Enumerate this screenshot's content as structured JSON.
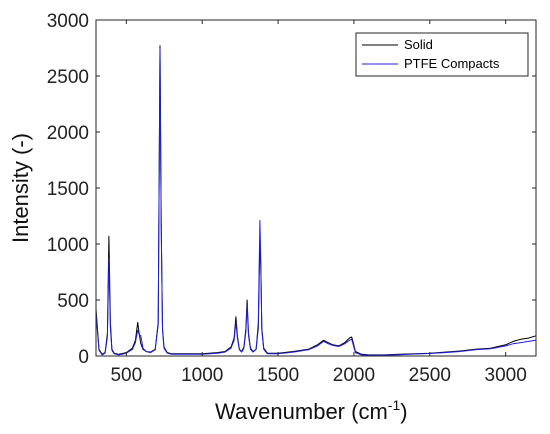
{
  "chart_data": {
    "type": "line",
    "xlabel": "Wavenumber (cm",
    "xlabel_superscript": "-1",
    "xlabel_suffix": ")",
    "ylabel": "Intensity (-)",
    "xlim": [
      300,
      3200
    ],
    "ylim": [
      0,
      3000
    ],
    "xticks": [
      500,
      1000,
      1500,
      2000,
      2500,
      3000
    ],
    "yticks": [
      0,
      500,
      1000,
      1500,
      2000,
      2500,
      3000
    ],
    "grid": false,
    "legend_position": "top-right",
    "series": [
      {
        "name": "Solid",
        "color": "#000000",
        "x": [
          300,
          320,
          340,
          360,
          375,
          385,
          395,
          405,
          420,
          450,
          500,
          540,
          560,
          575,
          585,
          595,
          610,
          630,
          660,
          690,
          710,
          722,
          730,
          738,
          748,
          770,
          800,
          900,
          1000,
          1100,
          1150,
          1190,
          1210,
          1222,
          1232,
          1245,
          1260,
          1275,
          1288,
          1296,
          1305,
          1318,
          1335,
          1355,
          1370,
          1380,
          1386,
          1393,
          1405,
          1430,
          1500,
          1600,
          1700,
          1760,
          1800,
          1830,
          1860,
          1900,
          1940,
          1970,
          1985,
          1995,
          2010,
          2050,
          2100,
          2200,
          2300,
          2400,
          2500,
          2600,
          2700,
          2800,
          2900,
          3000,
          3050,
          3100,
          3150,
          3200
        ],
        "values": [
          420,
          60,
          15,
          30,
          200,
          1070,
          300,
          60,
          25,
          15,
          30,
          70,
          140,
          300,
          200,
          110,
          60,
          40,
          35,
          60,
          300,
          2770,
          1200,
          250,
          80,
          30,
          20,
          20,
          20,
          30,
          40,
          80,
          160,
          350,
          180,
          60,
          40,
          80,
          250,
          500,
          200,
          70,
          40,
          60,
          250,
          1030,
          800,
          250,
          70,
          25,
          25,
          40,
          60,
          100,
          140,
          120,
          100,
          90,
          120,
          160,
          170,
          120,
          40,
          15,
          10,
          10,
          15,
          20,
          25,
          35,
          45,
          60,
          70,
          100,
          130,
          150,
          160,
          180
        ]
      },
      {
        "name": "PTFE Compacts",
        "color": "#1f1fe0",
        "x": [
          300,
          320,
          340,
          360,
          375,
          385,
          395,
          405,
          420,
          450,
          500,
          540,
          560,
          575,
          585,
          595,
          610,
          630,
          660,
          690,
          710,
          722,
          730,
          738,
          748,
          770,
          800,
          900,
          1000,
          1100,
          1150,
          1190,
          1210,
          1222,
          1232,
          1245,
          1260,
          1275,
          1288,
          1296,
          1305,
          1318,
          1335,
          1355,
          1370,
          1380,
          1386,
          1393,
          1405,
          1430,
          1500,
          1600,
          1700,
          1760,
          1800,
          1830,
          1860,
          1900,
          1940,
          1970,
          1985,
          1995,
          2010,
          2050,
          2100,
          2200,
          2300,
          2400,
          2500,
          2600,
          2700,
          2800,
          2900,
          3000,
          3050,
          3100,
          3150,
          3200
        ],
        "values": [
          380,
          50,
          10,
          25,
          170,
          870,
          250,
          50,
          20,
          10,
          25,
          60,
          120,
          230,
          190,
          180,
          70,
          40,
          30,
          55,
          280,
          2740,
          1150,
          230,
          70,
          25,
          15,
          15,
          15,
          25,
          35,
          70,
          140,
          300,
          160,
          55,
          35,
          70,
          220,
          450,
          180,
          60,
          35,
          60,
          300,
          1210,
          850,
          230,
          60,
          20,
          20,
          35,
          55,
          90,
          130,
          110,
          95,
          85,
          110,
          140,
          150,
          100,
          30,
          10,
          8,
          8,
          12,
          18,
          22,
          30,
          40,
          55,
          65,
          90,
          110,
          120,
          130,
          140
        ]
      }
    ]
  }
}
